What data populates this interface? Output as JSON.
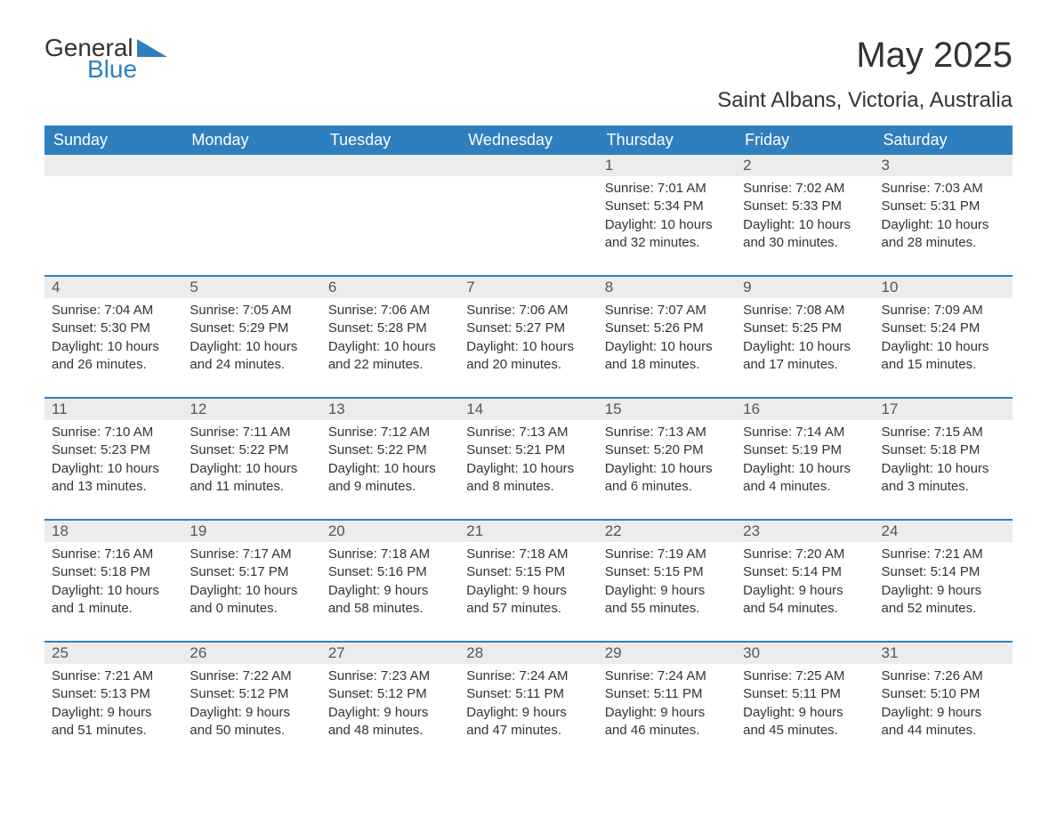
{
  "logo": {
    "word1": "General",
    "word2": "Blue"
  },
  "header": {
    "title": "May 2025",
    "location": "Saint Albans, Victoria, Australia"
  },
  "colors": {
    "accent": "#2f7fbf",
    "band": "#ececec",
    "text": "#333333",
    "bg": "#ffffff"
  },
  "daynames": [
    "Sunday",
    "Monday",
    "Tuesday",
    "Wednesday",
    "Thursday",
    "Friday",
    "Saturday"
  ],
  "weeks": [
    [
      {
        "n": "",
        "sunrise": "",
        "sunset": "",
        "daylight": ""
      },
      {
        "n": "",
        "sunrise": "",
        "sunset": "",
        "daylight": ""
      },
      {
        "n": "",
        "sunrise": "",
        "sunset": "",
        "daylight": ""
      },
      {
        "n": "",
        "sunrise": "",
        "sunset": "",
        "daylight": ""
      },
      {
        "n": "1",
        "sunrise": "Sunrise: 7:01 AM",
        "sunset": "Sunset: 5:34 PM",
        "daylight": "Daylight: 10 hours and 32 minutes."
      },
      {
        "n": "2",
        "sunrise": "Sunrise: 7:02 AM",
        "sunset": "Sunset: 5:33 PM",
        "daylight": "Daylight: 10 hours and 30 minutes."
      },
      {
        "n": "3",
        "sunrise": "Sunrise: 7:03 AM",
        "sunset": "Sunset: 5:31 PM",
        "daylight": "Daylight: 10 hours and 28 minutes."
      }
    ],
    [
      {
        "n": "4",
        "sunrise": "Sunrise: 7:04 AM",
        "sunset": "Sunset: 5:30 PM",
        "daylight": "Daylight: 10 hours and 26 minutes."
      },
      {
        "n": "5",
        "sunrise": "Sunrise: 7:05 AM",
        "sunset": "Sunset: 5:29 PM",
        "daylight": "Daylight: 10 hours and 24 minutes."
      },
      {
        "n": "6",
        "sunrise": "Sunrise: 7:06 AM",
        "sunset": "Sunset: 5:28 PM",
        "daylight": "Daylight: 10 hours and 22 minutes."
      },
      {
        "n": "7",
        "sunrise": "Sunrise: 7:06 AM",
        "sunset": "Sunset: 5:27 PM",
        "daylight": "Daylight: 10 hours and 20 minutes."
      },
      {
        "n": "8",
        "sunrise": "Sunrise: 7:07 AM",
        "sunset": "Sunset: 5:26 PM",
        "daylight": "Daylight: 10 hours and 18 minutes."
      },
      {
        "n": "9",
        "sunrise": "Sunrise: 7:08 AM",
        "sunset": "Sunset: 5:25 PM",
        "daylight": "Daylight: 10 hours and 17 minutes."
      },
      {
        "n": "10",
        "sunrise": "Sunrise: 7:09 AM",
        "sunset": "Sunset: 5:24 PM",
        "daylight": "Daylight: 10 hours and 15 minutes."
      }
    ],
    [
      {
        "n": "11",
        "sunrise": "Sunrise: 7:10 AM",
        "sunset": "Sunset: 5:23 PM",
        "daylight": "Daylight: 10 hours and 13 minutes."
      },
      {
        "n": "12",
        "sunrise": "Sunrise: 7:11 AM",
        "sunset": "Sunset: 5:22 PM",
        "daylight": "Daylight: 10 hours and 11 minutes."
      },
      {
        "n": "13",
        "sunrise": "Sunrise: 7:12 AM",
        "sunset": "Sunset: 5:22 PM",
        "daylight": "Daylight: 10 hours and 9 minutes."
      },
      {
        "n": "14",
        "sunrise": "Sunrise: 7:13 AM",
        "sunset": "Sunset: 5:21 PM",
        "daylight": "Daylight: 10 hours and 8 minutes."
      },
      {
        "n": "15",
        "sunrise": "Sunrise: 7:13 AM",
        "sunset": "Sunset: 5:20 PM",
        "daylight": "Daylight: 10 hours and 6 minutes."
      },
      {
        "n": "16",
        "sunrise": "Sunrise: 7:14 AM",
        "sunset": "Sunset: 5:19 PM",
        "daylight": "Daylight: 10 hours and 4 minutes."
      },
      {
        "n": "17",
        "sunrise": "Sunrise: 7:15 AM",
        "sunset": "Sunset: 5:18 PM",
        "daylight": "Daylight: 10 hours and 3 minutes."
      }
    ],
    [
      {
        "n": "18",
        "sunrise": "Sunrise: 7:16 AM",
        "sunset": "Sunset: 5:18 PM",
        "daylight": "Daylight: 10 hours and 1 minute."
      },
      {
        "n": "19",
        "sunrise": "Sunrise: 7:17 AM",
        "sunset": "Sunset: 5:17 PM",
        "daylight": "Daylight: 10 hours and 0 minutes."
      },
      {
        "n": "20",
        "sunrise": "Sunrise: 7:18 AM",
        "sunset": "Sunset: 5:16 PM",
        "daylight": "Daylight: 9 hours and 58 minutes."
      },
      {
        "n": "21",
        "sunrise": "Sunrise: 7:18 AM",
        "sunset": "Sunset: 5:15 PM",
        "daylight": "Daylight: 9 hours and 57 minutes."
      },
      {
        "n": "22",
        "sunrise": "Sunrise: 7:19 AM",
        "sunset": "Sunset: 5:15 PM",
        "daylight": "Daylight: 9 hours and 55 minutes."
      },
      {
        "n": "23",
        "sunrise": "Sunrise: 7:20 AM",
        "sunset": "Sunset: 5:14 PM",
        "daylight": "Daylight: 9 hours and 54 minutes."
      },
      {
        "n": "24",
        "sunrise": "Sunrise: 7:21 AM",
        "sunset": "Sunset: 5:14 PM",
        "daylight": "Daylight: 9 hours and 52 minutes."
      }
    ],
    [
      {
        "n": "25",
        "sunrise": "Sunrise: 7:21 AM",
        "sunset": "Sunset: 5:13 PM",
        "daylight": "Daylight: 9 hours and 51 minutes."
      },
      {
        "n": "26",
        "sunrise": "Sunrise: 7:22 AM",
        "sunset": "Sunset: 5:12 PM",
        "daylight": "Daylight: 9 hours and 50 minutes."
      },
      {
        "n": "27",
        "sunrise": "Sunrise: 7:23 AM",
        "sunset": "Sunset: 5:12 PM",
        "daylight": "Daylight: 9 hours and 48 minutes."
      },
      {
        "n": "28",
        "sunrise": "Sunrise: 7:24 AM",
        "sunset": "Sunset: 5:11 PM",
        "daylight": "Daylight: 9 hours and 47 minutes."
      },
      {
        "n": "29",
        "sunrise": "Sunrise: 7:24 AM",
        "sunset": "Sunset: 5:11 PM",
        "daylight": "Daylight: 9 hours and 46 minutes."
      },
      {
        "n": "30",
        "sunrise": "Sunrise: 7:25 AM",
        "sunset": "Sunset: 5:11 PM",
        "daylight": "Daylight: 9 hours and 45 minutes."
      },
      {
        "n": "31",
        "sunrise": "Sunrise: 7:26 AM",
        "sunset": "Sunset: 5:10 PM",
        "daylight": "Daylight: 9 hours and 44 minutes."
      }
    ]
  ]
}
